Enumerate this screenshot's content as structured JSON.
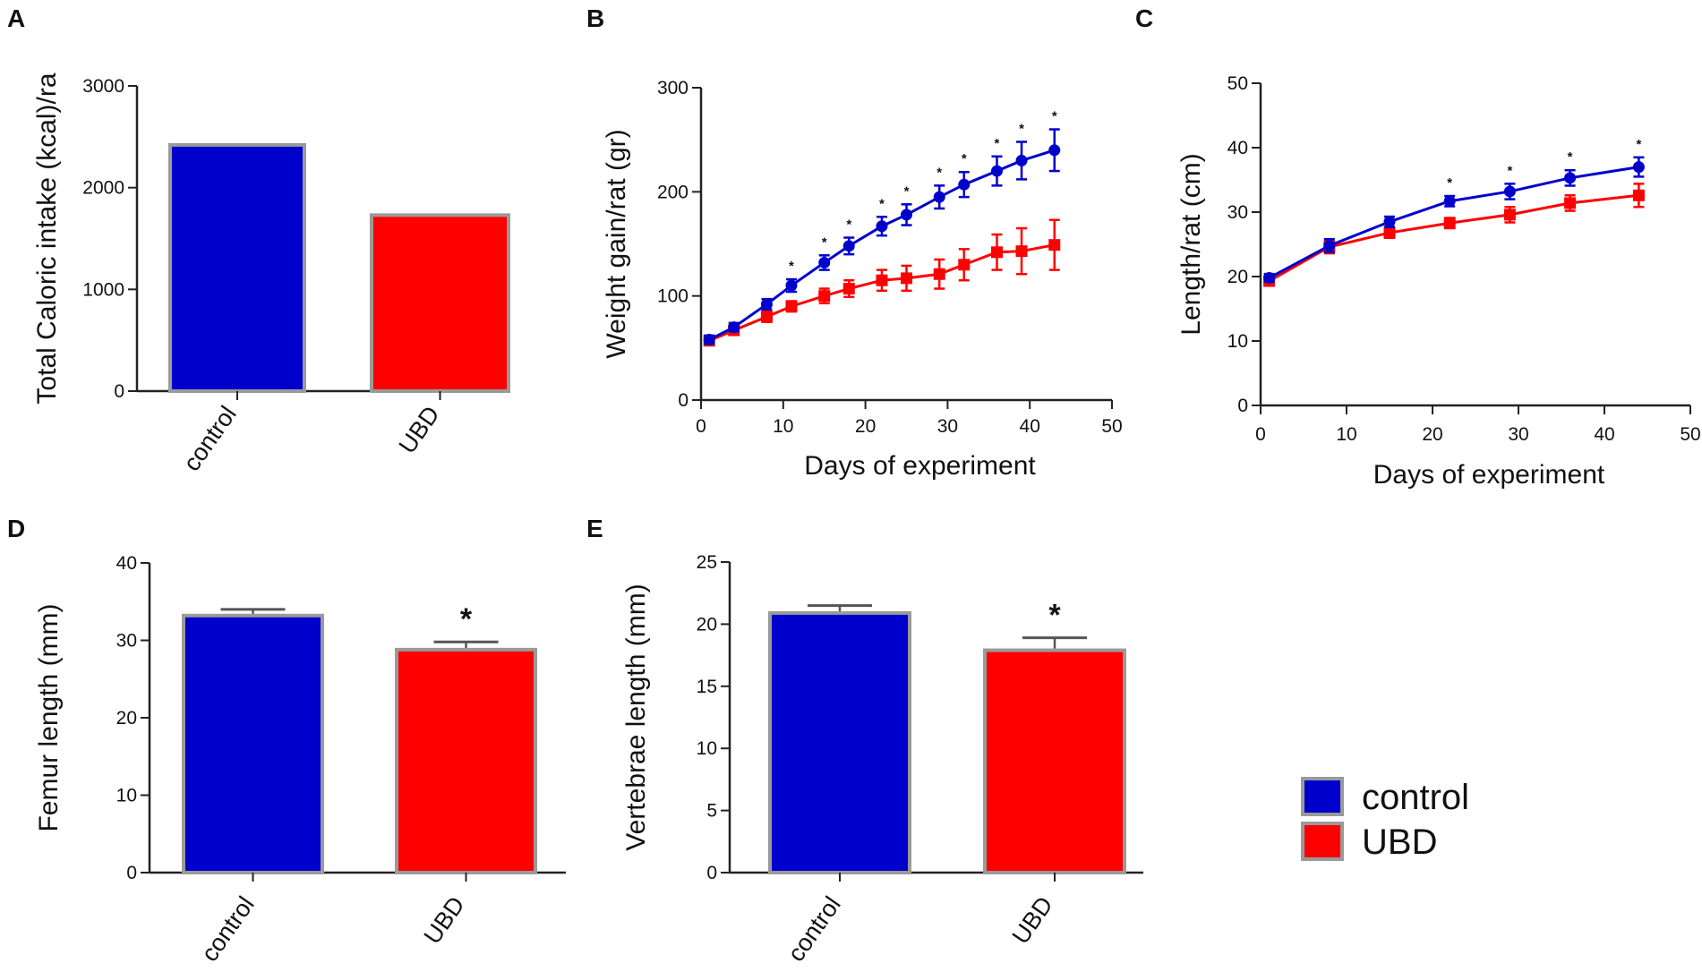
{
  "colors": {
    "control": "#0000cc",
    "UBD": "#ff0000",
    "bar_edge": "#9a9a9a",
    "axis": "#222222"
  },
  "legend": {
    "items": [
      {
        "label": "control",
        "color": "#0000cc"
      },
      {
        "label": "UBD",
        "color": "#ff0000"
      }
    ]
  },
  "chart_data": [
    {
      "id": "A",
      "type": "bar",
      "panel_label": "A",
      "categories": [
        "control",
        "UBD"
      ],
      "values": [
        2420,
        1730
      ],
      "ylabel": "Total Caloric intake (kcal)/ra",
      "xlabel": "",
      "ylim": [
        0,
        3000
      ],
      "yticks": [
        0,
        1000,
        2000,
        3000
      ],
      "significance": [
        "",
        ""
      ]
    },
    {
      "id": "B",
      "type": "line",
      "panel_label": "B",
      "xlabel": "Days of experiment",
      "ylabel": "Weight gain/rat (gr)",
      "xlim": [
        0,
        50
      ],
      "ylim": [
        0,
        300
      ],
      "xticks": [
        0,
        10,
        20,
        30,
        40,
        50
      ],
      "yticks": [
        0,
        100,
        200,
        300
      ],
      "series": [
        {
          "name": "control",
          "x": [
            1,
            4,
            8,
            11,
            15,
            18,
            22,
            25,
            29,
            32,
            36,
            39,
            43
          ],
          "values": [
            58,
            70,
            92,
            110,
            132,
            148,
            167,
            178,
            195,
            207,
            220,
            230,
            240
          ],
          "errors": [
            4,
            4,
            5,
            6,
            7,
            8,
            9,
            10,
            11,
            12,
            14,
            18,
            20
          ]
        },
        {
          "name": "UBD",
          "x": [
            1,
            4,
            8,
            11,
            15,
            18,
            22,
            25,
            29,
            32,
            36,
            39,
            43
          ],
          "values": [
            57,
            67,
            80,
            90,
            100,
            107,
            115,
            117,
            121,
            130,
            142,
            143,
            149
          ],
          "errors": [
            4,
            4,
            5,
            5,
            7,
            8,
            10,
            12,
            14,
            15,
            17,
            22,
            24
          ]
        }
      ],
      "significance_x": [
        11,
        15,
        18,
        22,
        25,
        29,
        32,
        36,
        39,
        43
      ],
      "significance": [
        "*",
        "*",
        "*",
        "*",
        "*",
        "*",
        "*",
        "*",
        "*",
        "*"
      ]
    },
    {
      "id": "C",
      "type": "line",
      "panel_label": "C",
      "xlabel": "Days of experiment",
      "ylabel": "Length/rat (cm)",
      "xlim": [
        0,
        50
      ],
      "ylim": [
        0,
        50
      ],
      "xticks": [
        0,
        10,
        20,
        30,
        40,
        50
      ],
      "yticks": [
        0,
        10,
        20,
        30,
        40,
        50
      ],
      "series": [
        {
          "name": "control",
          "x": [
            1,
            8,
            15,
            22,
            29,
            36,
            44
          ],
          "values": [
            19.8,
            24.8,
            28.5,
            31.7,
            33.2,
            35.3,
            37.0
          ],
          "errors": [
            0.6,
            1.0,
            0.8,
            0.8,
            1.2,
            1.2,
            1.5
          ]
        },
        {
          "name": "UBD",
          "x": [
            1,
            8,
            15,
            22,
            29,
            36,
            44
          ],
          "values": [
            19.3,
            24.6,
            26.8,
            28.3,
            29.6,
            31.4,
            32.6
          ],
          "errors": [
            0.6,
            1.0,
            0.8,
            0.8,
            1.2,
            1.2,
            1.8
          ]
        }
      ],
      "significance_x": [
        22,
        29,
        36,
        44
      ],
      "significance": [
        "*",
        "*",
        "*",
        "*"
      ]
    },
    {
      "id": "D",
      "type": "bar",
      "panel_label": "D",
      "categories": [
        "control",
        "UBD"
      ],
      "values": [
        33.2,
        28.8
      ],
      "errors": [
        0.8,
        1.0
      ],
      "ylabel": "Femur length (mm)",
      "xlabel": "",
      "ylim": [
        0,
        40
      ],
      "yticks": [
        0,
        10,
        20,
        30,
        40
      ],
      "significance": [
        "",
        "*"
      ]
    },
    {
      "id": "E",
      "type": "bar",
      "panel_label": "E",
      "categories": [
        "control",
        "UBD"
      ],
      "values": [
        20.9,
        17.9
      ],
      "errors": [
        0.6,
        1.0
      ],
      "ylabel": "Vertebrae length (mm)",
      "xlabel": "",
      "ylim": [
        0,
        25
      ],
      "yticks": [
        0,
        5,
        10,
        15,
        20,
        25
      ],
      "significance": [
        "",
        "*"
      ]
    }
  ]
}
